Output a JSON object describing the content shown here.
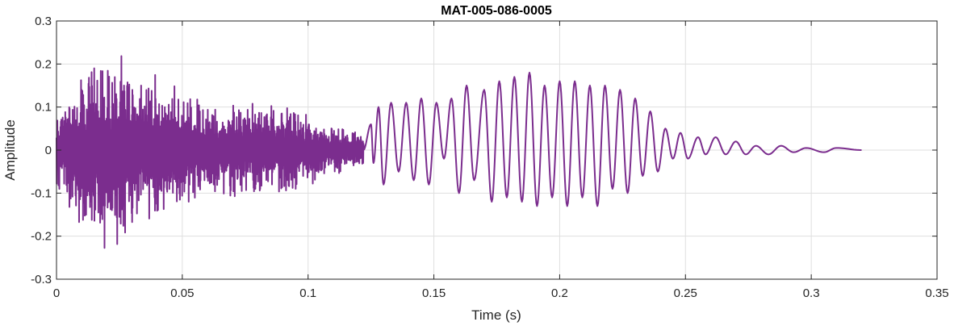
{
  "chart_data": {
    "type": "line",
    "title": "MAT-005-086-0005",
    "xlabel": "Time (s)",
    "ylabel": "Amplitude",
    "xlim": [
      0,
      0.35
    ],
    "ylim": [
      -0.3,
      0.3
    ],
    "x_ticks": [
      0,
      0.05,
      0.1,
      0.15,
      0.2,
      0.25,
      0.3,
      0.35
    ],
    "x_tick_labels": [
      "0",
      "0.05",
      "0.1",
      "0.15",
      "0.2",
      "0.25",
      "0.3",
      "0.35"
    ],
    "y_ticks": [
      -0.3,
      -0.2,
      -0.1,
      0,
      0.1,
      0.2,
      0.3
    ],
    "y_tick_labels": [
      "-0.3",
      "-0.2",
      "-0.1",
      "0",
      "0.1",
      "0.2",
      "0.3"
    ],
    "grid": true,
    "line_color": "#7b2d8e",
    "series": [
      {
        "x_start": 0,
        "x_end": 0.32,
        "segments": [
          {
            "t_start": 0.0,
            "t_end": 0.122,
            "kind": "noise",
            "envelope": [
              [
                0.0,
                0.1
              ],
              [
                0.016,
                0.26
              ],
              [
                0.035,
                0.2
              ],
              [
                0.06,
                0.12
              ],
              [
                0.09,
                0.12
              ],
              [
                0.105,
                0.07
              ],
              [
                0.122,
                0.04
              ]
            ]
          },
          {
            "t_start": 0.122,
            "t_end": 0.32,
            "kind": "oscillation",
            "peaks": [
              [
                0.125,
                0.06
              ],
              [
                0.126,
                -0.03
              ],
              [
                0.128,
                0.1
              ],
              [
                0.13,
                -0.08
              ],
              [
                0.133,
                0.11
              ],
              [
                0.136,
                -0.05
              ],
              [
                0.139,
                0.11
              ],
              [
                0.142,
                -0.07
              ],
              [
                0.145,
                0.12
              ],
              [
                0.148,
                -0.08
              ],
              [
                0.151,
                0.11
              ],
              [
                0.154,
                -0.02
              ],
              [
                0.157,
                0.12
              ],
              [
                0.16,
                -0.1
              ],
              [
                0.163,
                0.15
              ],
              [
                0.166,
                -0.07
              ],
              [
                0.17,
                0.14
              ],
              [
                0.173,
                -0.12
              ],
              [
                0.176,
                0.16
              ],
              [
                0.179,
                -0.11
              ],
              [
                0.182,
                0.17
              ],
              [
                0.185,
                -0.12
              ],
              [
                0.188,
                0.18
              ],
              [
                0.191,
                -0.13
              ],
              [
                0.194,
                0.15
              ],
              [
                0.197,
                -0.11
              ],
              [
                0.2,
                0.16
              ],
              [
                0.203,
                -0.13
              ],
              [
                0.206,
                0.16
              ],
              [
                0.209,
                -0.11
              ],
              [
                0.212,
                0.15
              ],
              [
                0.215,
                -0.13
              ],
              [
                0.218,
                0.15
              ],
              [
                0.221,
                -0.09
              ],
              [
                0.224,
                0.14
              ],
              [
                0.227,
                -0.1
              ],
              [
                0.23,
                0.12
              ],
              [
                0.233,
                -0.06
              ],
              [
                0.236,
                0.09
              ],
              [
                0.239,
                -0.05
              ],
              [
                0.242,
                0.05
              ],
              [
                0.245,
                -0.02
              ],
              [
                0.248,
                0.04
              ],
              [
                0.251,
                -0.02
              ],
              [
                0.255,
                0.03
              ],
              [
                0.258,
                -0.01
              ],
              [
                0.262,
                0.03
              ],
              [
                0.266,
                -0.01
              ],
              [
                0.27,
                0.02
              ],
              [
                0.274,
                -0.01
              ],
              [
                0.278,
                0.01
              ],
              [
                0.283,
                -0.01
              ],
              [
                0.288,
                0.01
              ],
              [
                0.293,
                -0.005
              ],
              [
                0.298,
                0.005
              ],
              [
                0.305,
                -0.005
              ],
              [
                0.31,
                0.005
              ],
              [
                0.32,
                0.0
              ]
            ]
          }
        ]
      }
    ]
  }
}
